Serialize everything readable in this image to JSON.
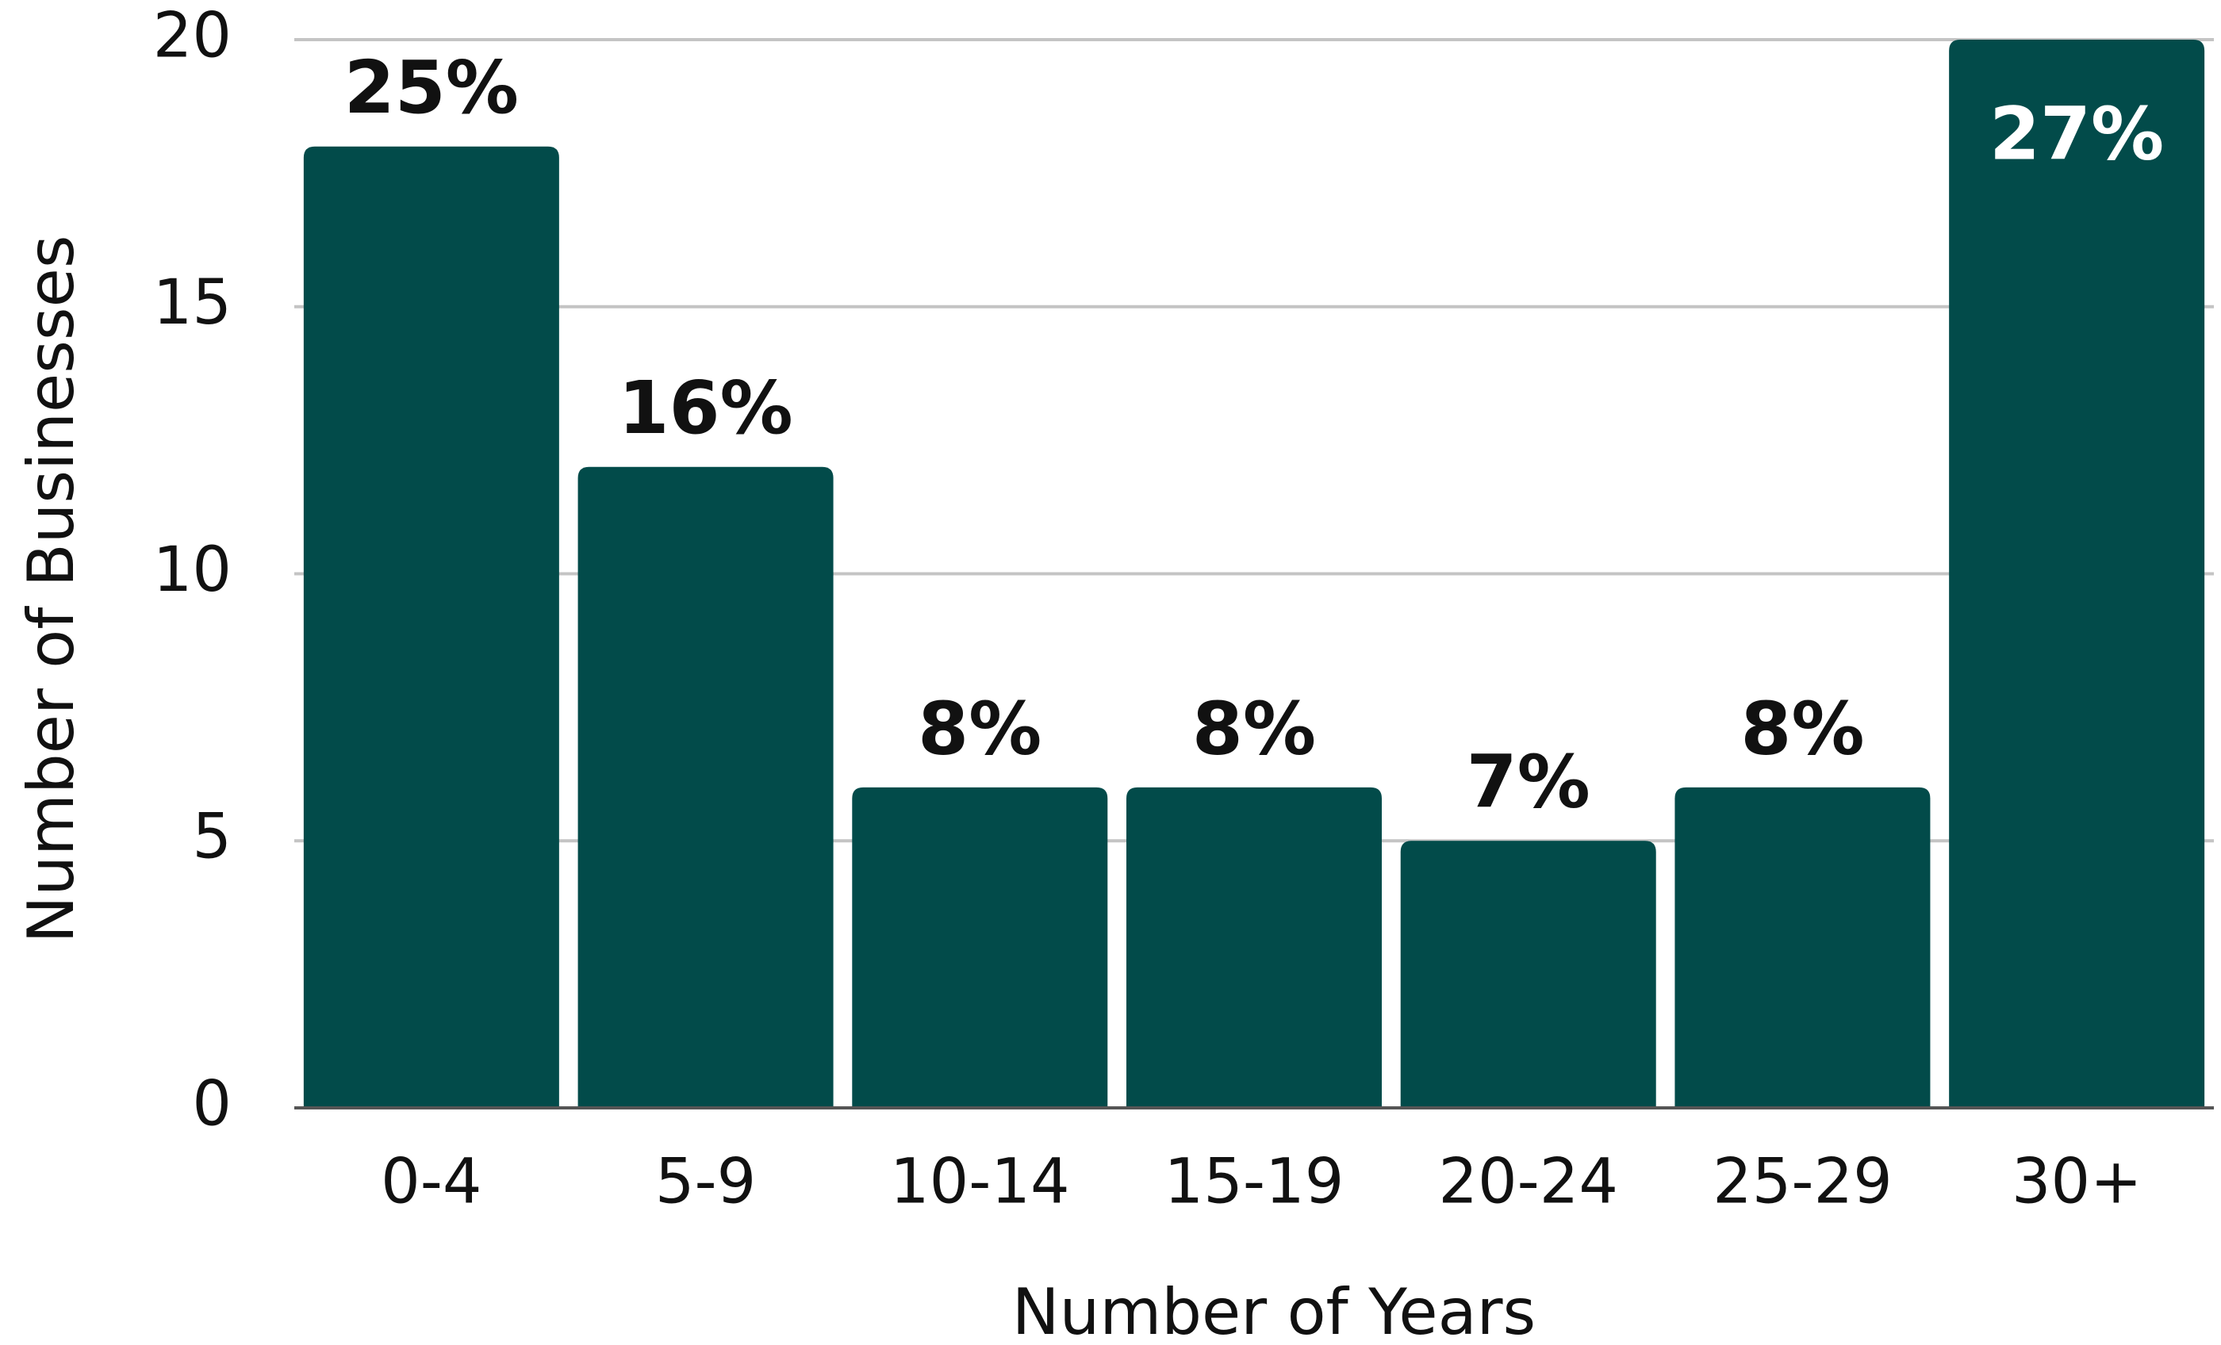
{
  "chart_data": {
    "type": "bar",
    "x_label": "Number of Years",
    "y_label": "Number of Businesses",
    "categories": [
      "0-4",
      "5-9",
      "10-14",
      "15-19",
      "20-24",
      "25-29",
      "30+"
    ],
    "values": [
      18,
      12,
      6,
      6,
      5,
      6,
      20
    ],
    "bar_labels": [
      "25%",
      "16%",
      "8%",
      "8%",
      "7%",
      "8%",
      "27%"
    ],
    "color": "#024b4a",
    "ylim": [
      0,
      20
    ],
    "yticks": [
      0,
      5,
      10,
      15,
      20
    ],
    "grid": true
  }
}
